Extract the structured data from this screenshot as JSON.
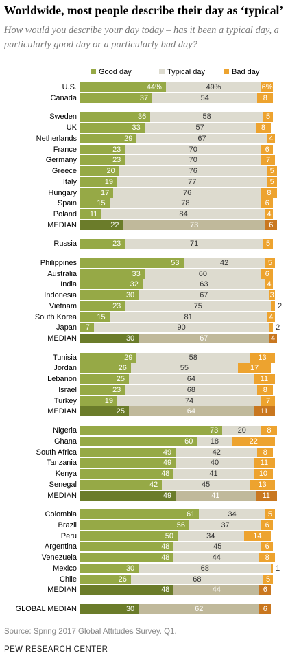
{
  "title": "Worldwide, most people describe their day as ‘typical’",
  "subtitle": "How would you describe your day today – has it been a typical day, a particularly good day or a particularly bad day?",
  "source": "Source: Spring 2017 Global Attitudes Survey. Q1.",
  "credit": "PEW RESEARCH CENTER",
  "colors": {
    "good": "#96a946",
    "typical": "#dddbcf",
    "bad": "#eda32f",
    "median_good": "#6b7c2a",
    "median_typical": "#c0b99b",
    "median_bad": "#c9771f"
  },
  "chart_data": {
    "type": "bar",
    "stacked": true,
    "orientation": "horizontal",
    "unit": "%",
    "xlim": [
      0,
      100
    ],
    "legend": [
      "Good day",
      "Typical day",
      "Bad day"
    ],
    "series": [
      {
        "key": "good",
        "name": "Good day"
      },
      {
        "key": "typical",
        "name": "Typical day"
      },
      {
        "key": "bad",
        "name": "Bad day"
      }
    ],
    "rows": [
      {
        "label": "U.S.",
        "good": 44,
        "typical": 49,
        "bad": 6,
        "good_label": "44%",
        "typical_label": "49%",
        "bad_label": "6%"
      },
      {
        "label": "Canada",
        "good": 37,
        "typical": 54,
        "bad": 8
      },
      {
        "gap": true
      },
      {
        "label": "Sweden",
        "good": 36,
        "typical": 58,
        "bad": 5
      },
      {
        "label": "UK",
        "good": 33,
        "typical": 57,
        "bad": 8
      },
      {
        "label": "Netherlands",
        "good": 29,
        "typical": 67,
        "bad": 4
      },
      {
        "label": "France",
        "good": 23,
        "typical": 70,
        "bad": 6
      },
      {
        "label": "Germany",
        "good": 23,
        "typical": 70,
        "bad": 7
      },
      {
        "label": "Greece",
        "good": 20,
        "typical": 76,
        "bad": 5
      },
      {
        "label": "Italy",
        "good": 19,
        "typical": 77,
        "bad": 5
      },
      {
        "label": "Hungary",
        "good": 17,
        "typical": 76,
        "bad": 8
      },
      {
        "label": "Spain",
        "good": 15,
        "typical": 78,
        "bad": 6
      },
      {
        "label": "Poland",
        "good": 11,
        "typical": 84,
        "bad": 4
      },
      {
        "label": "MEDIAN",
        "good": 22,
        "typical": 73,
        "bad": 6,
        "median": true
      },
      {
        "gap": true
      },
      {
        "label": "Russia",
        "good": 23,
        "typical": 71,
        "bad": 5
      },
      {
        "gap": true
      },
      {
        "label": "Philippines",
        "good": 53,
        "typical": 42,
        "bad": 5
      },
      {
        "label": "Australia",
        "good": 33,
        "typical": 60,
        "bad": 6
      },
      {
        "label": "India",
        "good": 32,
        "typical": 63,
        "bad": 4
      },
      {
        "label": "Indonesia",
        "good": 30,
        "typical": 67,
        "bad": 3
      },
      {
        "label": "Vietnam",
        "good": 23,
        "typical": 75,
        "bad": 2
      },
      {
        "label": "South Korea",
        "good": 15,
        "typical": 81,
        "bad": 4
      },
      {
        "label": "Japan",
        "good": 7,
        "typical": 90,
        "bad": 2
      },
      {
        "label": "MEDIAN",
        "good": 30,
        "typical": 67,
        "bad": 4,
        "median": true
      },
      {
        "gap": true
      },
      {
        "label": "Tunisia",
        "good": 29,
        "typical": 58,
        "bad": 13
      },
      {
        "label": "Jordan",
        "good": 26,
        "typical": 55,
        "bad": 17
      },
      {
        "label": "Lebanon",
        "good": 25,
        "typical": 64,
        "bad": 11
      },
      {
        "label": "Israel",
        "good": 23,
        "typical": 68,
        "bad": 8
      },
      {
        "label": "Turkey",
        "good": 19,
        "typical": 74,
        "bad": 7
      },
      {
        "label": "MEDIAN",
        "good": 25,
        "typical": 64,
        "bad": 11,
        "median": true
      },
      {
        "gap": true
      },
      {
        "label": "Nigeria",
        "good": 73,
        "typical": 20,
        "bad": 8
      },
      {
        "label": "Ghana",
        "good": 60,
        "typical": 18,
        "bad": 22
      },
      {
        "label": "South Africa",
        "good": 49,
        "typical": 42,
        "bad": 8
      },
      {
        "label": "Tanzania",
        "good": 49,
        "typical": 40,
        "bad": 11
      },
      {
        "label": "Kenya",
        "good": 48,
        "typical": 41,
        "bad": 10
      },
      {
        "label": "Senegal",
        "good": 42,
        "typical": 45,
        "bad": 13
      },
      {
        "label": "MEDIAN",
        "good": 49,
        "typical": 41,
        "bad": 11,
        "median": true
      },
      {
        "gap": true
      },
      {
        "label": "Colombia",
        "good": 61,
        "typical": 34,
        "bad": 5
      },
      {
        "label": "Brazil",
        "good": 56,
        "typical": 37,
        "bad": 6
      },
      {
        "label": "Peru",
        "good": 50,
        "typical": 34,
        "bad": 14
      },
      {
        "label": "Argentina",
        "good": 48,
        "typical": 45,
        "bad": 6
      },
      {
        "label": "Venezuela",
        "good": 48,
        "typical": 44,
        "bad": 8
      },
      {
        "label": "Mexico",
        "good": 30,
        "typical": 68,
        "bad": 1
      },
      {
        "label": "Chile",
        "good": 26,
        "typical": 68,
        "bad": 5
      },
      {
        "label": "MEDIAN",
        "good": 48,
        "typical": 44,
        "bad": 6,
        "median": true
      },
      {
        "gap": true
      },
      {
        "label": "GLOBAL MEDIAN",
        "good": 30,
        "typical": 62,
        "bad": 6,
        "median": true
      }
    ]
  }
}
